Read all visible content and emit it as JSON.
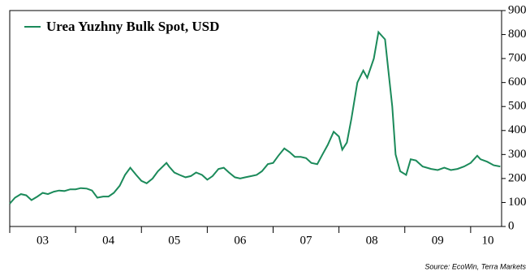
{
  "chart_data": {
    "type": "line",
    "title": "Urea Yuzhny Bulk Spot, USD",
    "source": "Source: EcoWin, Terra Markets",
    "x": [
      2003.0,
      2003.08,
      2003.17,
      2003.25,
      2003.33,
      2003.42,
      2003.5,
      2003.58,
      2003.67,
      2003.75,
      2003.83,
      2003.92,
      2004.0,
      2004.08,
      2004.17,
      2004.25,
      2004.33,
      2004.42,
      2004.5,
      2004.58,
      2004.67,
      2004.75,
      2004.83,
      2004.92,
      2005.0,
      2005.08,
      2005.17,
      2005.25,
      2005.38,
      2005.42,
      2005.5,
      2005.58,
      2005.67,
      2005.75,
      2005.83,
      2005.92,
      2006.0,
      2006.08,
      2006.17,
      2006.25,
      2006.33,
      2006.42,
      2006.5,
      2006.58,
      2006.67,
      2006.75,
      2006.83,
      2006.92,
      2007.0,
      2007.08,
      2007.17,
      2007.25,
      2007.33,
      2007.42,
      2007.5,
      2007.58,
      2007.67,
      2007.75,
      2007.83,
      2007.92,
      2008.0,
      2008.05,
      2008.12,
      2008.19,
      2008.28,
      2008.37,
      2008.43,
      2008.53,
      2008.6,
      2008.7,
      2008.75,
      2008.81,
      2008.86,
      2008.93,
      2009.02,
      2009.09,
      2009.17,
      2009.27,
      2009.4,
      2009.5,
      2009.6,
      2009.7,
      2009.8,
      2009.9,
      2010.0,
      2010.1,
      2010.15,
      2010.25,
      2010.35,
      2010.45
    ],
    "series": [
      {
        "name": "Urea Yuzhny Bulk Spot, USD",
        "color": "#1b8a5a",
        "values": [
          95,
          120,
          135,
          130,
          110,
          125,
          140,
          135,
          145,
          150,
          148,
          155,
          155,
          160,
          158,
          150,
          120,
          125,
          125,
          140,
          170,
          215,
          245,
          215,
          190,
          180,
          200,
          230,
          265,
          250,
          225,
          215,
          205,
          210,
          225,
          215,
          195,
          210,
          240,
          245,
          225,
          205,
          200,
          205,
          210,
          215,
          230,
          260,
          265,
          295,
          325,
          310,
          290,
          290,
          285,
          265,
          260,
          300,
          340,
          395,
          375,
          320,
          350,
          450,
          600,
          650,
          620,
          700,
          810,
          780,
          650,
          500,
          300,
          230,
          215,
          280,
          275,
          250,
          240,
          235,
          245,
          235,
          240,
          250,
          265,
          295,
          280,
          270,
          255,
          250
        ]
      }
    ],
    "xlim": [
      2003.0,
      2010.47
    ],
    "xticks": [
      {
        "value": 2003.5,
        "label": "03"
      },
      {
        "value": 2004.5,
        "label": "04"
      },
      {
        "value": 2005.5,
        "label": "05"
      },
      {
        "value": 2006.5,
        "label": "06"
      },
      {
        "value": 2007.5,
        "label": "07"
      },
      {
        "value": 2008.5,
        "label": "08"
      },
      {
        "value": 2009.5,
        "label": "09"
      },
      {
        "value": 2010.26,
        "label": "10"
      }
    ],
    "xminorticks": [
      2003,
      2004,
      2005,
      2006,
      2007,
      2008,
      2009,
      2010
    ],
    "ylim": [
      0,
      900
    ],
    "yticks": [
      0,
      100,
      200,
      300,
      400,
      500,
      600,
      700,
      800,
      900
    ],
    "legend": "top-left"
  }
}
